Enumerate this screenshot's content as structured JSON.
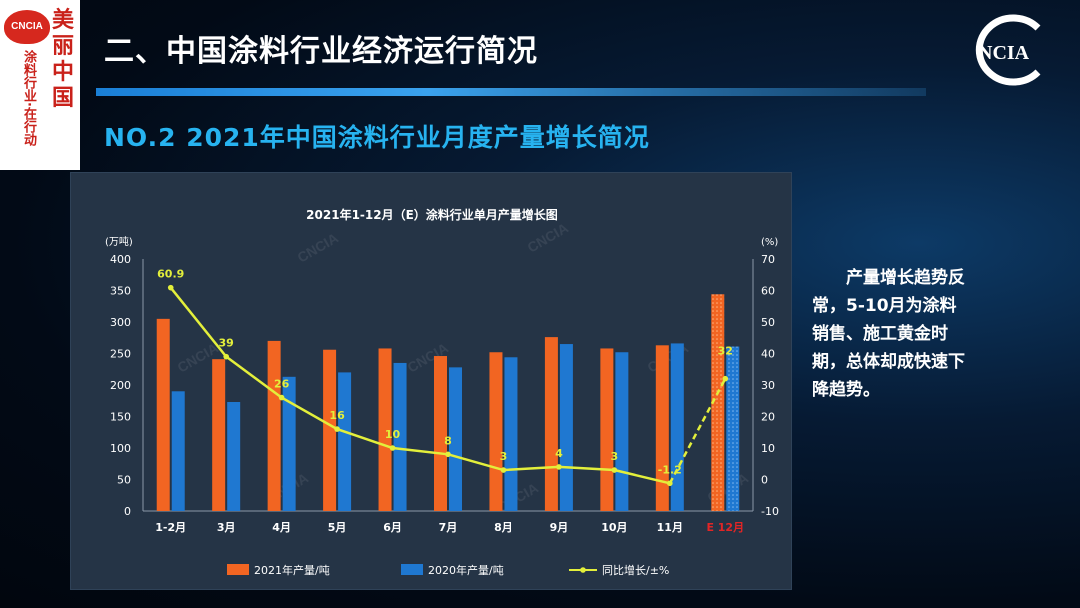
{
  "header": {
    "title": "二、中国涂料行业经济运行简况",
    "subtitle": "NO.2 2021年中国涂料行业月度产量增长简况"
  },
  "logos": {
    "side_badge": "CNCIA",
    "side_vertical": "美丽中国",
    "side_vertical2": "涂料行业·在行动",
    "corner": "NCIA"
  },
  "commentary": "产量增长趋势反常，5-10月为涂料销售、施工黄金时期，总体却成快速下降趋势。",
  "chart_data": {
    "type": "bar",
    "title": "2021年1-12月（E）涂料行业单月产量增长图",
    "ylabel": "(万吨)",
    "y2label": "(%)",
    "ylim": [
      0,
      400
    ],
    "y2lim": [
      -10,
      70
    ],
    "yticks": [
      0,
      50,
      100,
      150,
      200,
      250,
      300,
      350,
      400
    ],
    "y2ticks": [
      -10,
      0,
      10,
      20,
      30,
      40,
      50,
      60,
      70
    ],
    "categories": [
      "1-2月",
      "3月",
      "4月",
      "5月",
      "6月",
      "7月",
      "8月",
      "9月",
      "10月",
      "11月",
      "E 12月"
    ],
    "series": [
      {
        "name": "2021年产量/吨",
        "type": "bar",
        "color": "#f26522",
        "values": [
          305,
          241,
          270,
          256,
          258,
          246,
          252,
          276,
          258,
          263,
          344
        ]
      },
      {
        "name": "2020年产量/吨",
        "type": "bar",
        "color": "#1f78d1",
        "values": [
          190,
          173,
          213,
          220,
          235,
          228,
          244,
          265,
          252,
          266,
          261
        ]
      },
      {
        "name": "同比增长/±%",
        "type": "line",
        "color": "#e3ef3b",
        "values": [
          60.9,
          39,
          26,
          16,
          10,
          8,
          3,
          4,
          3,
          -1.2,
          32
        ],
        "labels": [
          "60.9",
          "39",
          "26",
          "16",
          "10",
          "8",
          "3",
          "4",
          "3",
          "-1.2",
          "32"
        ]
      }
    ],
    "legend": "bottom",
    "watermark": "CNCIA"
  }
}
